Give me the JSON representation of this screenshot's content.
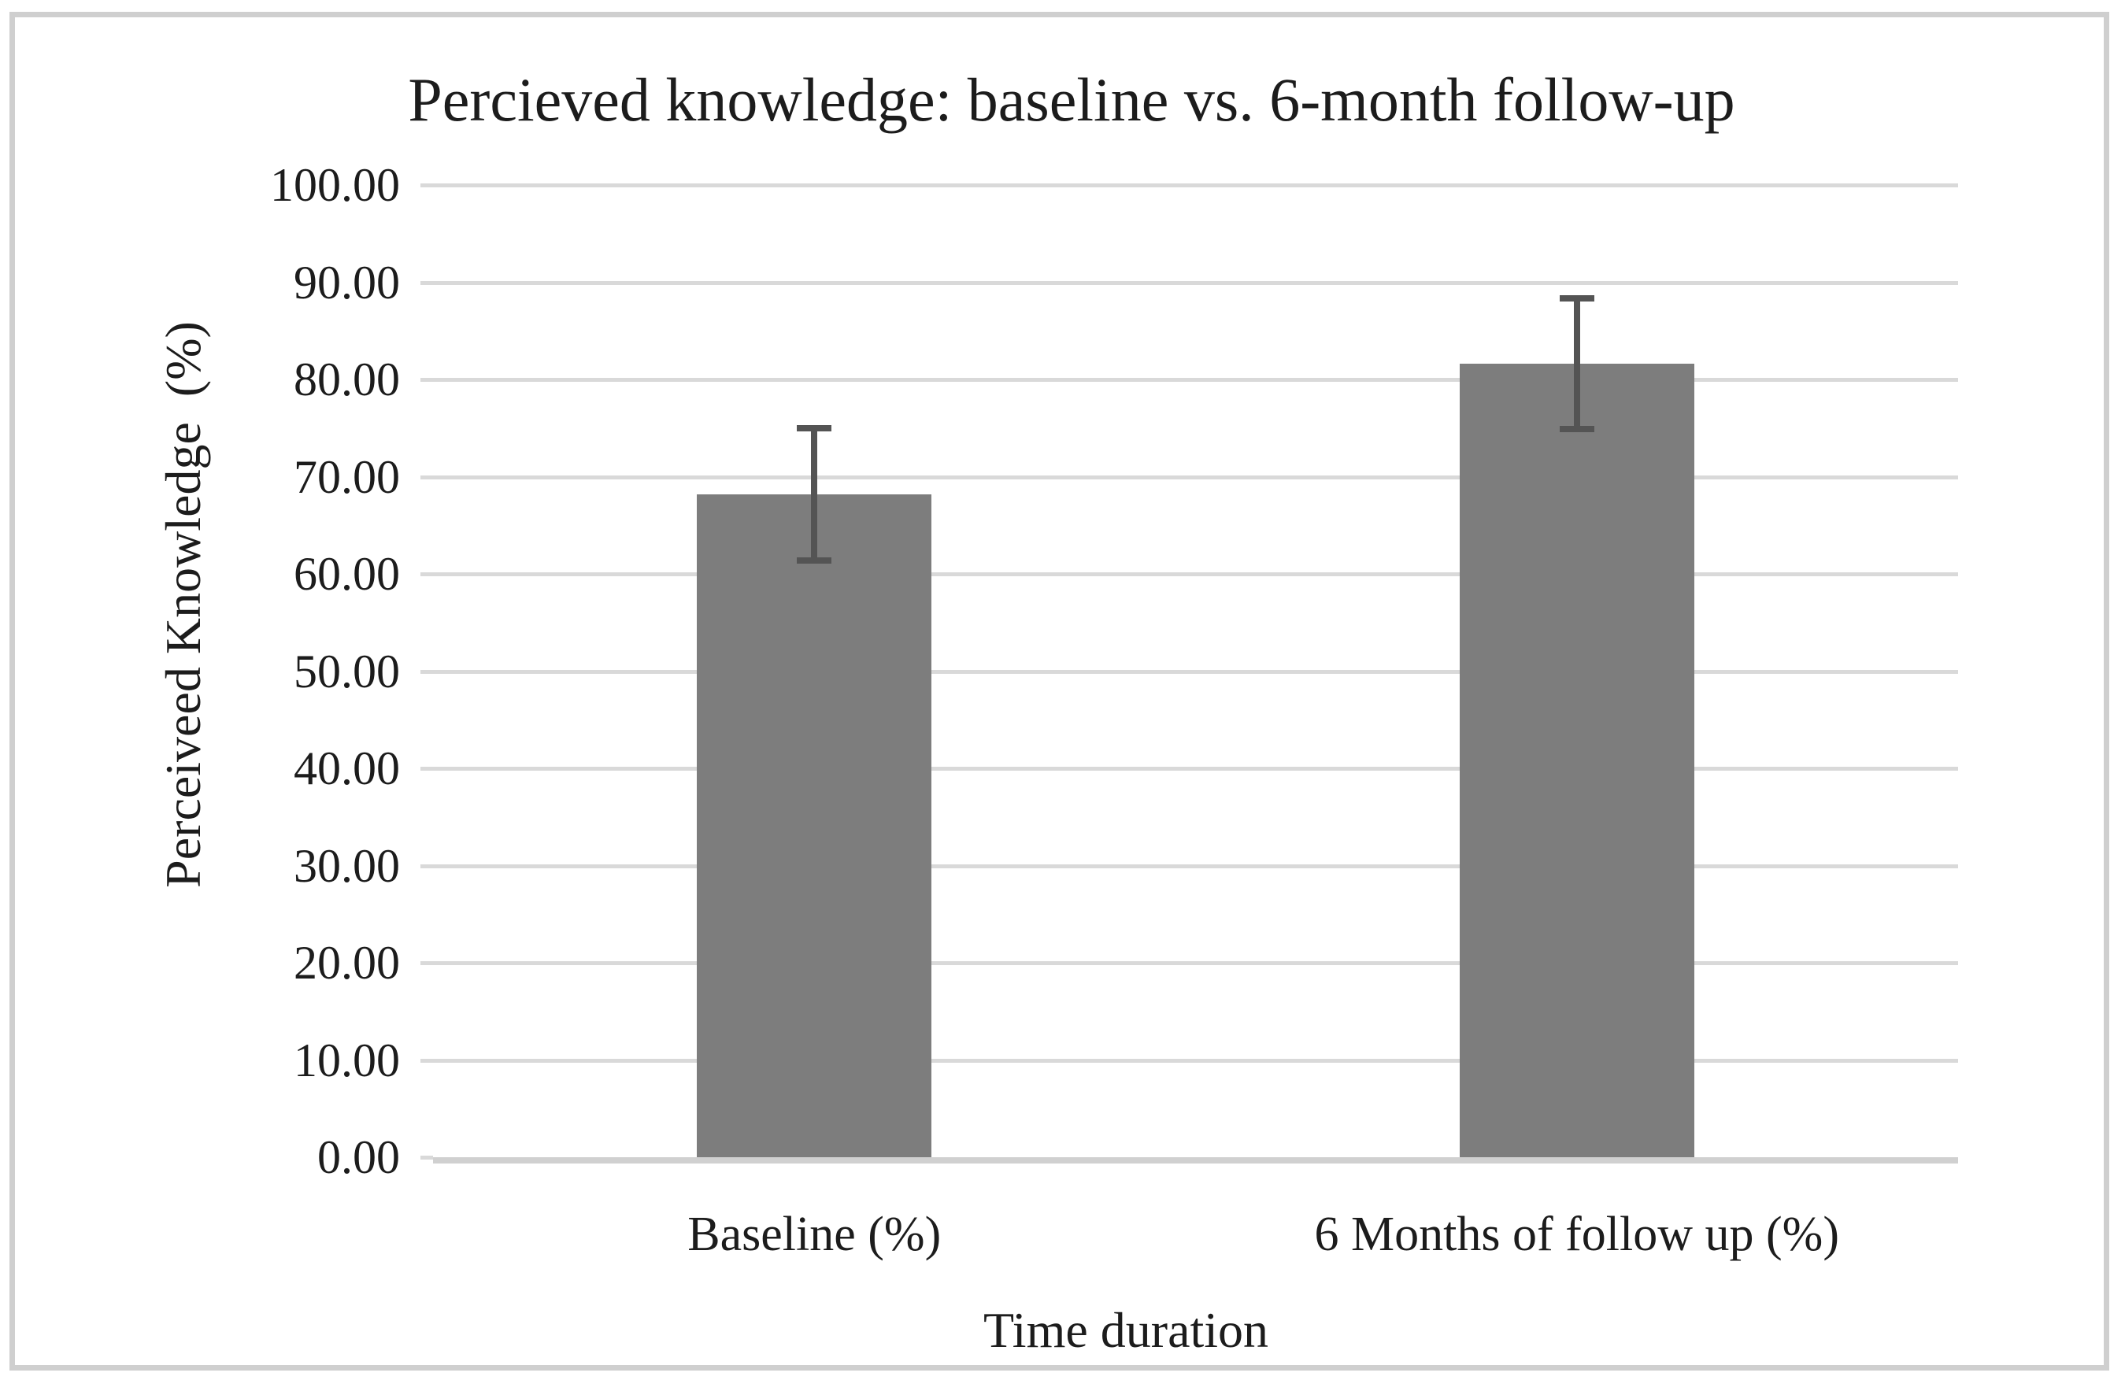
{
  "figure": {
    "background": "#ffffff",
    "border_color": "#cfcfcf"
  },
  "chart_data": {
    "type": "bar",
    "title": "Percieved knowledge: baseline vs. 6-month follow-up",
    "xlabel": "Time duration",
    "ylabel": "Perceiveed Knowledge  (%)",
    "categories": [
      "Baseline (%)",
      "6 Months of follow up (%)"
    ],
    "values": [
      68.2,
      81.6
    ],
    "error_upper": [
      75.0,
      88.3
    ],
    "error_lower": [
      61.4,
      74.9
    ],
    "ylim": [
      0,
      100
    ],
    "ytick_labels": [
      "0.00",
      "10.00",
      "20.00",
      "30.00",
      "40.00",
      "50.00",
      "60.00",
      "70.00",
      "80.00",
      "90.00",
      "100.00"
    ],
    "grid": "horizontal",
    "legend": "none",
    "colors": {
      "bar": "#7d7d7d",
      "error_bar": "#545454",
      "gridline": "#d9d9d9",
      "axis_line": "#d0d0d0",
      "text": "#1c1c1c"
    }
  }
}
